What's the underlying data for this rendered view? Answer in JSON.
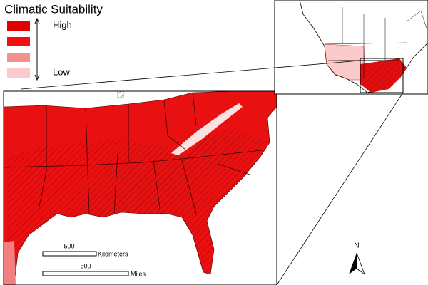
{
  "legend": {
    "title": "Climatic Suitability",
    "high": "High",
    "low": "Low"
  },
  "scale_bars": [
    {
      "value": "500",
      "unit": "Kilometers"
    },
    {
      "value": "500",
      "unit": "Miles"
    }
  ],
  "north_arrow": {
    "label": "N"
  }
}
